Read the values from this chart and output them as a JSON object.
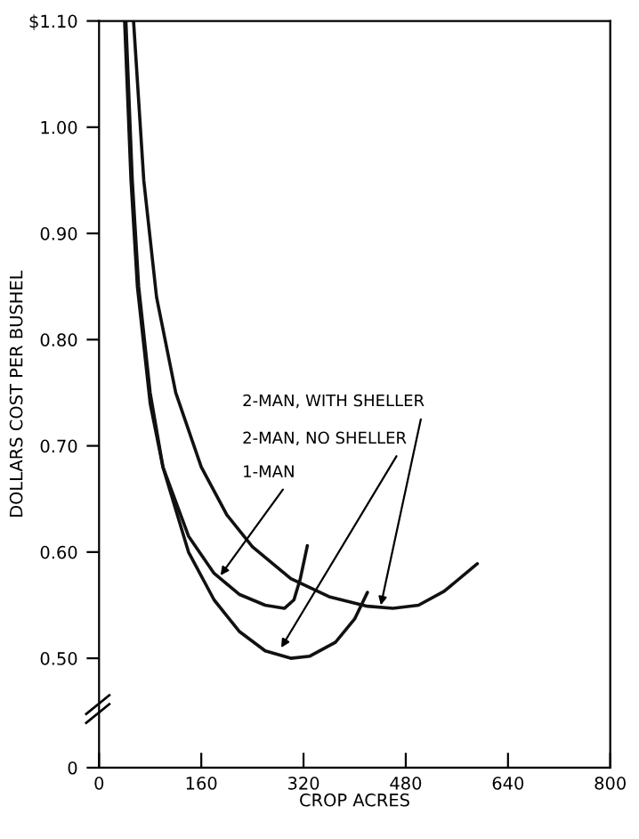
{
  "chart_data": {
    "type": "line",
    "xlabel": "CROP ACRES",
    "ylabel": "DOLLARS COST PER BUSHEL",
    "xlim": [
      0,
      800
    ],
    "xticks": [
      0,
      160,
      320,
      480,
      640,
      800
    ],
    "ylim": [
      0.397,
      1.1
    ],
    "yticks": [
      {
        "value": 0.397,
        "label": "0"
      },
      {
        "value": 0.5,
        "label": "0.50"
      },
      {
        "value": 0.6,
        "label": "0.60"
      },
      {
        "value": 0.7,
        "label": "0.70"
      },
      {
        "value": 0.8,
        "label": "0.80"
      },
      {
        "value": 0.9,
        "label": "0.90"
      },
      {
        "value": 1.0,
        "label": "1.00"
      },
      {
        "value": 1.1,
        "label": "$1.10"
      }
    ],
    "grid": false,
    "legend": false,
    "marker": "none",
    "line_style": "solid",
    "series": [
      {
        "color": "#111111",
        "x": [
          40,
          50,
          60,
          80,
          100,
          140,
          180,
          220,
          260,
          290,
          305,
          315,
          326
        ],
        "values": [
          1.1,
          0.95,
          0.85,
          0.74,
          0.68,
          0.615,
          0.58,
          0.56,
          0.55,
          0.547,
          0.555,
          0.575,
          0.606
        ]
      },
      {
        "color": "#111111",
        "x": [
          42,
          52,
          62,
          80,
          100,
          140,
          180,
          220,
          260,
          300,
          330,
          370,
          400,
          420
        ],
        "values": [
          1.1,
          0.95,
          0.85,
          0.75,
          0.68,
          0.6,
          0.555,
          0.525,
          0.507,
          0.5,
          0.502,
          0.515,
          0.537,
          0.562
        ]
      },
      {
        "color": "#111111",
        "x": [
          54,
          70,
          90,
          120,
          160,
          200,
          240,
          300,
          360,
          420,
          460,
          500,
          540,
          592
        ],
        "values": [
          1.1,
          0.95,
          0.84,
          0.75,
          0.68,
          0.635,
          0.605,
          0.575,
          0.558,
          0.549,
          0.547,
          0.55,
          0.563,
          0.589
        ]
      }
    ],
    "annotations": [
      {
        "text": "2-MAN, WITH SHELLER",
        "x": 441,
        "y": 0.55
      },
      {
        "text": "2-MAN, NO SHELLER",
        "x": 285,
        "y": 0.51
      },
      {
        "text": "1-MAN",
        "x": 190,
        "y": 0.578
      }
    ]
  }
}
